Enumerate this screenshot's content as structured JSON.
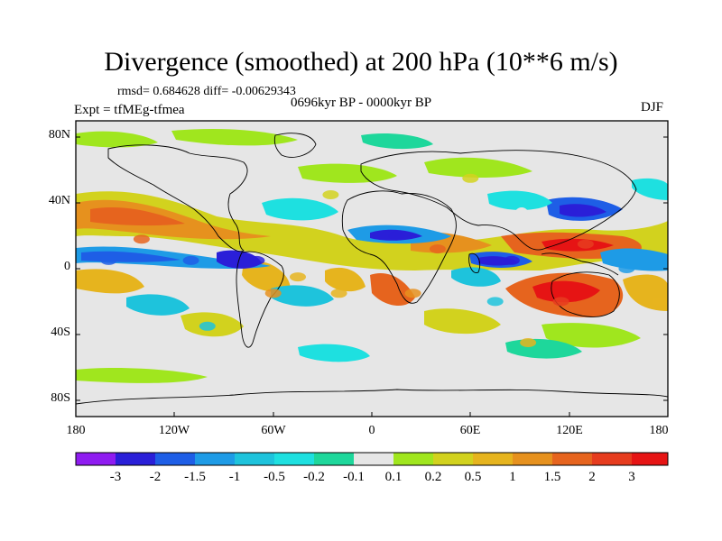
{
  "figure": {
    "title": "Divergence (smoothed) at 200 hPa (10**6 m/s)",
    "stats": "rmsd= 0.684628 diff= -0.00629343",
    "period": "0696kyr BP - 0000kyr BP",
    "experiment": "Expt = tfMEg-tfmea",
    "season": "DJF"
  },
  "map": {
    "lat_labels": [
      "80N",
      "40N",
      "0",
      "40S",
      "80S"
    ],
    "lon_labels": [
      "180",
      "120W",
      "60W",
      "0",
      "60E",
      "120E",
      "180"
    ],
    "background_color": "#e6e6e6"
  },
  "colorbar": {
    "labels": [
      "-3",
      "-2",
      "-1.5",
      "-1",
      "-0.5",
      "-0.2",
      "-0.1",
      "0.1",
      "0.2",
      "0.5",
      "1",
      "1.5",
      "2",
      "3"
    ],
    "colors": [
      "#8f1cf0",
      "#2a1fd8",
      "#1e5ee6",
      "#1e9be6",
      "#1ec3dc",
      "#1ee0e0",
      "#1ed79b",
      "#e6e6e6",
      "#a0e61e",
      "#d2d21e",
      "#e6b41e",
      "#e6911e",
      "#e6641e",
      "#e63c1e",
      "#e61414"
    ]
  },
  "chart_data": {
    "type": "heatmap",
    "title": "Divergence (smoothed) at 200 hPa (10**6 m/s)",
    "subtitle": "rmsd= 0.684628 diff= -0.00629343",
    "xlabel": "",
    "ylabel": "",
    "x_ticks": [
      "180",
      "120W",
      "60W",
      "0",
      "60E",
      "120E",
      "180"
    ],
    "y_ticks": [
      "80N",
      "40N",
      "0",
      "40S",
      "80S"
    ],
    "xlim": [
      -180,
      180
    ],
    "ylim": [
      -90,
      90
    ],
    "levels": [
      -3,
      -2,
      -1.5,
      -1,
      -0.5,
      -0.2,
      -0.1,
      0.1,
      0.2,
      0.5,
      1,
      1.5,
      2,
      3
    ],
    "features": [
      {
        "lon": -140,
        "lat": 18,
        "value": 1.8
      },
      {
        "lon": -160,
        "lat": 5,
        "value": -1.8
      },
      {
        "lon": -110,
        "lat": 5,
        "value": -1.5
      },
      {
        "lon": -70,
        "lat": 5,
        "value": -2.2
      },
      {
        "lon": -60,
        "lat": -15,
        "value": 1.2
      },
      {
        "lon": -45,
        "lat": -5,
        "value": 0.6
      },
      {
        "lon": 15,
        "lat": 20,
        "value": -2.2
      },
      {
        "lon": 40,
        "lat": 12,
        "value": 1.8
      },
      {
        "lon": 85,
        "lat": 5,
        "value": -2.0
      },
      {
        "lon": 130,
        "lat": 15,
        "value": 2.5
      },
      {
        "lon": 115,
        "lat": -20,
        "value": 3.0
      },
      {
        "lon": 120,
        "lat": 35,
        "value": -2.0
      },
      {
        "lon": 25,
        "lat": -15,
        "value": 1.5
      },
      {
        "lon": 75,
        "lat": -20,
        "value": -0.6
      },
      {
        "lon": 155,
        "lat": 0,
        "value": -1.2
      },
      {
        "lon": 175,
        "lat": -20,
        "value": 1.0
      },
      {
        "lon": -100,
        "lat": -35,
        "value": -0.8
      },
      {
        "lon": -25,
        "lat": 45,
        "value": 0.4
      },
      {
        "lon": 60,
        "lat": 55,
        "value": 0.4
      },
      {
        "lon": 95,
        "lat": -45,
        "value": 1.0
      },
      {
        "lon": -20,
        "lat": -15,
        "value": 1.0
      }
    ]
  }
}
